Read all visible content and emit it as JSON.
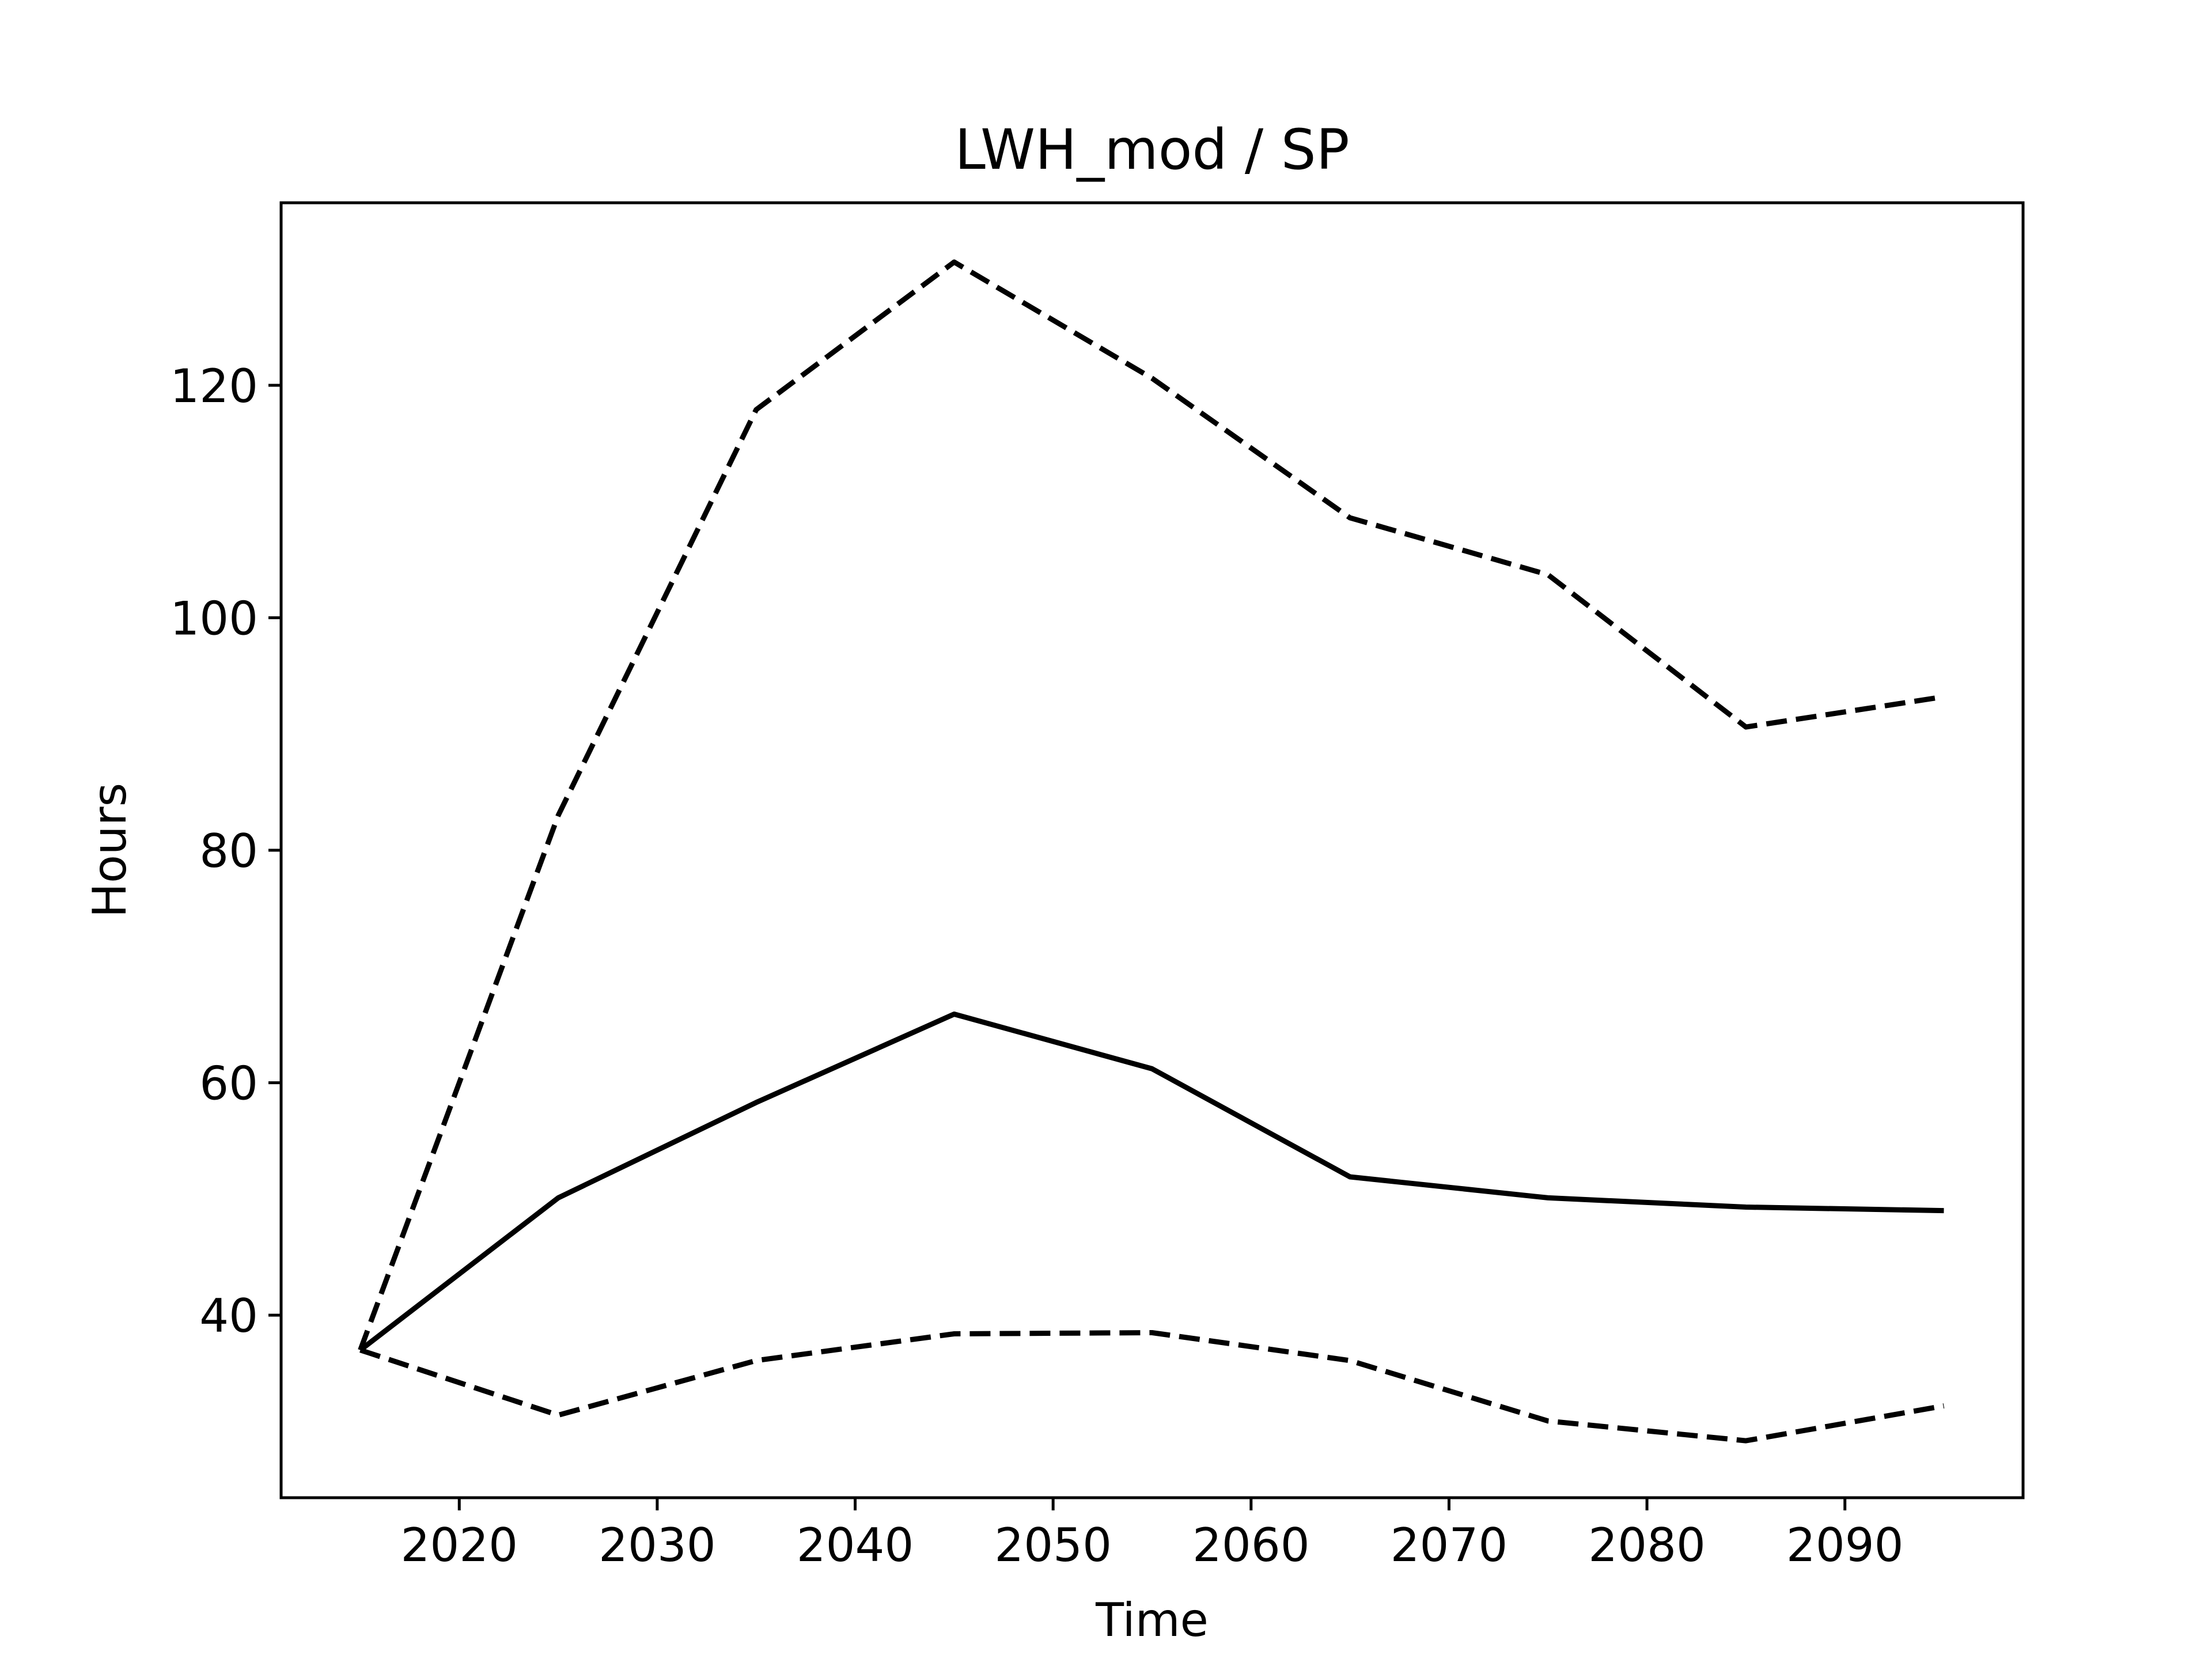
{
  "chart_data": {
    "type": "line",
    "title": "LWH_mod / SP",
    "xlabel": "Time",
    "ylabel": "Hours",
    "xlim": [
      2011,
      2099
    ],
    "ylim": [
      24.3,
      135.7
    ],
    "x_ticks": [
      2020,
      2030,
      2040,
      2050,
      2060,
      2070,
      2080,
      2090
    ],
    "y_ticks": [
      40,
      60,
      80,
      100,
      120
    ],
    "grid": false,
    "legend": "none",
    "x": [
      2015,
      2025,
      2035,
      2045,
      2055,
      2065,
      2075,
      2085,
      2095
    ],
    "series": [
      {
        "style": "solid",
        "color": "#000000",
        "values": [
          37.0,
          50.1,
          58.3,
          65.9,
          61.2,
          51.9,
          50.1,
          49.3,
          49.0
        ]
      },
      {
        "style": "dashed",
        "color": "#000000",
        "values": [
          37.0,
          83.0,
          117.9,
          130.6,
          120.6,
          108.6,
          103.7,
          90.6,
          93.2
        ]
      },
      {
        "style": "dashed",
        "color": "#000000",
        "values": [
          37.0,
          31.4,
          36.1,
          38.4,
          38.5,
          36.1,
          30.9,
          29.2,
          32.2
        ]
      }
    ]
  }
}
